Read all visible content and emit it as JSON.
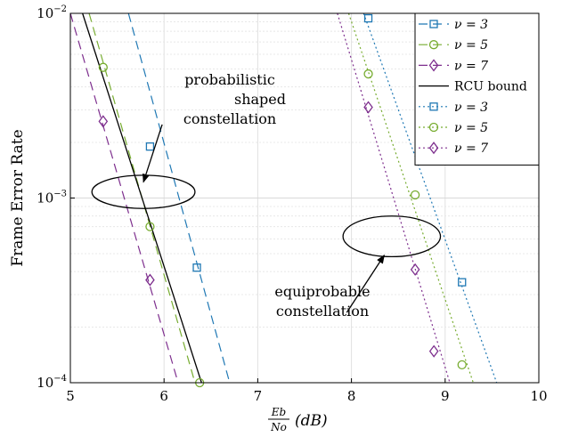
{
  "chart_data": {
    "type": "line",
    "xlabel": "E_b/N_o (dB)",
    "ylabel": "Frame Error Rate",
    "xlim": [
      5,
      10
    ],
    "ylim": [
      0.0001,
      0.01
    ],
    "yscale": "log",
    "grid": true,
    "legend_position": "top-right",
    "x_ticks": [
      "5",
      "6",
      "7",
      "8",
      "9",
      "10"
    ],
    "y_ticks": [
      {
        "base": "10",
        "exp": "−2",
        "value": 0.01
      },
      {
        "base": "10",
        "exp": "−3",
        "value": 0.001
      },
      {
        "base": "10",
        "exp": "−4",
        "value": 0.0001
      }
    ],
    "colors": {
      "nu3": "#1f78b4",
      "nu5": "#77ac30",
      "nu7": "#7e2f8e",
      "rcu": "#000000"
    },
    "series": [
      {
        "name": "ν = 3",
        "group": "probabilistic",
        "style": "dashed",
        "marker": "square",
        "color": "#1f78b4",
        "line": [
          [
            5.62,
            0.01
          ],
          [
            6.7,
            0.0001
          ]
        ],
        "points": [
          [
            5.85,
            0.0019
          ],
          [
            6.35,
            0.00042
          ]
        ]
      },
      {
        "name": "ν = 5",
        "group": "probabilistic",
        "style": "dashed",
        "marker": "circle",
        "color": "#77ac30",
        "line": [
          [
            5.2,
            0.01
          ],
          [
            6.33,
            0.0001
          ]
        ],
        "points": [
          [
            5.35,
            0.0051
          ],
          [
            5.85,
            0.0007
          ],
          [
            6.38,
            0.0001
          ]
        ]
      },
      {
        "name": "ν = 7",
        "group": "probabilistic",
        "style": "dashed",
        "marker": "diamond",
        "color": "#7e2f8e",
        "line": [
          [
            5.0,
            0.01
          ],
          [
            6.15,
            0.0001
          ]
        ],
        "points": [
          [
            5.35,
            0.0026
          ],
          [
            5.85,
            0.00036
          ]
        ]
      },
      {
        "name": "RCU bound",
        "group": "probabilistic",
        "style": "solid",
        "marker": "none",
        "color": "#000000",
        "line": [
          [
            5.13,
            0.01
          ],
          [
            6.4,
            0.0001
          ]
        ],
        "points": []
      },
      {
        "name": "ν = 3",
        "group": "equiprobable",
        "style": "dotted",
        "marker": "square",
        "color": "#1f78b4",
        "line": [
          [
            8.13,
            0.01
          ],
          [
            9.55,
            0.0001
          ]
        ],
        "points": [
          [
            8.18,
            0.0094
          ],
          [
            9.18,
            0.00035
          ]
        ]
      },
      {
        "name": "ν = 5",
        "group": "equiprobable",
        "style": "dotted",
        "marker": "circle",
        "color": "#77ac30",
        "line": [
          [
            7.97,
            0.01
          ],
          [
            9.3,
            0.0001
          ]
        ],
        "points": [
          [
            8.18,
            0.0047
          ],
          [
            8.68,
            0.00104
          ],
          [
            9.18,
            0.000125
          ]
        ]
      },
      {
        "name": "ν = 7",
        "group": "equiprobable",
        "style": "dotted",
        "marker": "diamond",
        "color": "#7e2f8e",
        "line": [
          [
            7.85,
            0.01
          ],
          [
            9.05,
            0.0001
          ]
        ],
        "points": [
          [
            8.18,
            0.0031
          ],
          [
            8.68,
            0.00041
          ],
          [
            8.88,
            0.000148
          ]
        ]
      }
    ],
    "annotations": [
      {
        "lines": [
          "probabilistic",
          "shaped",
          "constellation"
        ],
        "ellipse": {
          "cx": 5.78,
          "cy": 0.00108,
          "rx": 0.55,
          "ry_decades": 0.09
        },
        "arrow_from": [
          5.98,
          0.0025
        ],
        "arrow_to": [
          5.78,
          0.00122
        ]
      },
      {
        "lines": [
          "equiprobable",
          "constellation"
        ],
        "ellipse": {
          "cx": 8.43,
          "cy": 0.00062,
          "rx": 0.52,
          "ry_decades": 0.11
        },
        "arrow_from": [
          7.95,
          0.00024
        ],
        "arrow_to": [
          8.35,
          0.00049
        ]
      }
    ]
  }
}
